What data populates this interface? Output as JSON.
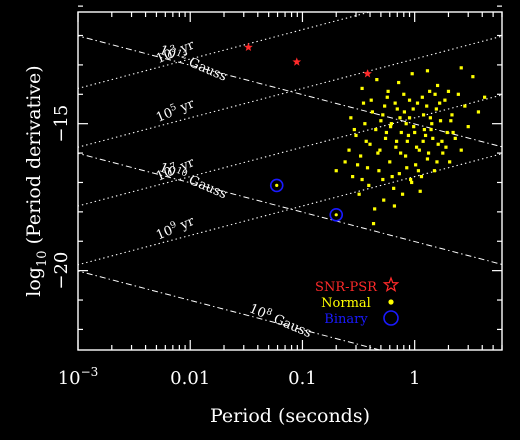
{
  "chart_data": {
    "type": "scatter",
    "title": "",
    "xlabel": "Period (seconds)",
    "ylabel_prefix": "log",
    "ylabel_sub": "10",
    "ylabel_rest": " (Period derivative)",
    "x_scale": "log",
    "xlim": [
      0.001,
      6.0
    ],
    "ylim": [
      -22.7,
      -11.2
    ],
    "x_ticks": [
      {
        "value": 0.001,
        "label_base": "10",
        "label_exp": "−3"
      },
      {
        "value": 0.01,
        "label": "0.01"
      },
      {
        "value": 0.1,
        "label": "0.1"
      },
      {
        "value": 1,
        "label": "1"
      }
    ],
    "y_ticks": [
      {
        "value": -15,
        "label": "−15"
      },
      {
        "value": -20,
        "label": "−20"
      }
    ],
    "field_lines": [
      {
        "label_base": "10",
        "label_exp": "12",
        "label_rest": " Gauss",
        "gauss_exp": 12
      },
      {
        "label_base": "10",
        "label_exp": "10",
        "label_rest": " Gauss",
        "gauss_exp": 10
      },
      {
        "label_base": "10",
        "label_exp": "8",
        "label_rest": " Gauss",
        "gauss_exp": 8
      }
    ],
    "age_lines": [
      {
        "label_base": "10",
        "label_exp": "3",
        "label_rest": " yr",
        "age_exp": 3
      },
      {
        "label_base": "10",
        "label_exp": "5",
        "label_rest": " yr",
        "age_exp": 5
      },
      {
        "label_base": "10",
        "label_exp": "7",
        "label_rest": " yr",
        "age_exp": 7
      },
      {
        "label_base": "10",
        "label_exp": "9",
        "label_rest": " yr",
        "age_exp": 9
      }
    ],
    "legend": {
      "placement": "bottom-right",
      "entries": [
        {
          "name": "SNR-PSR",
          "color": "#ff2a2a",
          "marker": "star"
        },
        {
          "name": "Normal",
          "color": "#ffff00",
          "marker": "dot"
        },
        {
          "name": "Binary",
          "color": "#1a1aff",
          "marker": "circle"
        }
      ]
    },
    "series": [
      {
        "name": "SNR-PSR",
        "color": "#ff2a2a",
        "points": [
          [
            0.033,
            -12.4
          ],
          [
            0.089,
            -12.9
          ],
          [
            0.38,
            -13.3
          ]
        ]
      },
      {
        "name": "Binary",
        "color": "#1a1aff",
        "points": [
          [
            0.059,
            -17.1
          ],
          [
            0.2,
            -18.1
          ]
        ]
      },
      {
        "name": "Normal",
        "color": "#ffff00",
        "points": [
          [
            0.2,
            -16.6
          ],
          [
            0.24,
            -16.3
          ],
          [
            0.26,
            -15.9
          ],
          [
            0.28,
            -16.8
          ],
          [
            0.3,
            -15.4
          ],
          [
            0.32,
            -17.4
          ],
          [
            0.33,
            -16.1
          ],
          [
            0.35,
            -14.3
          ],
          [
            0.36,
            -15.0
          ],
          [
            0.38,
            -16.5
          ],
          [
            0.4,
            -15.7
          ],
          [
            0.42,
            -14.6
          ],
          [
            0.44,
            -17.9
          ],
          [
            0.45,
            -15.2
          ],
          [
            0.47,
            -16.0
          ],
          [
            0.5,
            -14.9
          ],
          [
            0.52,
            -16.9
          ],
          [
            0.55,
            -15.5
          ],
          [
            0.57,
            -14.1
          ],
          [
            0.6,
            -16.3
          ],
          [
            0.62,
            -15.0
          ],
          [
            0.65,
            -17.2
          ],
          [
            0.68,
            -15.8
          ],
          [
            0.7,
            -14.5
          ],
          [
            0.73,
            -16.7
          ],
          [
            0.76,
            -15.3
          ],
          [
            0.8,
            -14.0
          ],
          [
            0.83,
            -16.1
          ],
          [
            0.86,
            -15.6
          ],
          [
            0.9,
            -14.8
          ],
          [
            0.94,
            -17.0
          ],
          [
            0.98,
            -15.1
          ],
          [
            1.02,
            -16.4
          ],
          [
            1.06,
            -14.3
          ],
          [
            1.1,
            -15.9
          ],
          [
            1.15,
            -16.8
          ],
          [
            1.2,
            -14.7
          ],
          [
            1.25,
            -15.4
          ],
          [
            1.3,
            -16.2
          ],
          [
            1.36,
            -13.9
          ],
          [
            1.42,
            -15.0
          ],
          [
            1.5,
            -16.6
          ],
          [
            1.56,
            -14.5
          ],
          [
            1.62,
            -15.7
          ],
          [
            1.7,
            -14.9
          ],
          [
            1.78,
            -16.0
          ],
          [
            1.86,
            -14.2
          ],
          [
            1.95,
            -15.3
          ],
          [
            2.05,
            -16.3
          ],
          [
            2.15,
            -14.7
          ],
          [
            2.3,
            -15.5
          ],
          [
            2.45,
            -14.0
          ],
          [
            2.6,
            -15.9
          ],
          [
            2.8,
            -14.4
          ],
          [
            3.0,
            -15.1
          ],
          [
            3.3,
            -13.4
          ],
          [
            3.7,
            -14.6
          ],
          [
            4.2,
            -14.1
          ],
          [
            0.34,
            -13.8
          ],
          [
            0.46,
            -13.5
          ],
          [
            0.58,
            -13.9
          ],
          [
            0.72,
            -13.6
          ],
          [
            0.95,
            -13.3
          ],
          [
            1.3,
            -13.2
          ],
          [
            1.6,
            -13.7
          ],
          [
            2.0,
            -13.9
          ],
          [
            2.6,
            -13.1
          ],
          [
            0.27,
            -14.8
          ],
          [
            0.31,
            -16.4
          ],
          [
            0.39,
            -17.1
          ],
          [
            0.43,
            -18.4
          ],
          [
            0.53,
            -17.6
          ],
          [
            0.66,
            -17.8
          ],
          [
            0.78,
            -17.4
          ],
          [
            0.92,
            -16.9
          ],
          [
            1.12,
            -17.3
          ],
          [
            0.37,
            -15.6
          ],
          [
            0.49,
            -15.9
          ],
          [
            0.61,
            -15.1
          ],
          [
            0.75,
            -16.0
          ],
          [
            0.88,
            -15.4
          ],
          [
            1.04,
            -15.8
          ],
          [
            1.22,
            -15.2
          ],
          [
            1.45,
            -15.5
          ],
          [
            1.75,
            -15.6
          ],
          [
            2.2,
            -15.3
          ],
          [
            0.41,
            -14.2
          ],
          [
            0.54,
            -14.4
          ],
          [
            0.67,
            -14.3
          ],
          [
            0.81,
            -14.6
          ],
          [
            0.97,
            -14.5
          ],
          [
            1.17,
            -14.1
          ],
          [
            1.38,
            -14.8
          ],
          [
            1.67,
            -14.3
          ],
          [
            2.1,
            -14.9
          ],
          [
            0.29,
            -15.2
          ],
          [
            0.34,
            -16.9
          ],
          [
            0.48,
            -16.6
          ],
          [
            0.63,
            -16.8
          ],
          [
            0.85,
            -16.5
          ],
          [
            1.08,
            -16.6
          ],
          [
            1.33,
            -16.0
          ],
          [
            1.58,
            -16.3
          ],
          [
            1.9,
            -15.8
          ],
          [
            0.56,
            -15.3
          ],
          [
            0.69,
            -15.6
          ],
          [
            0.84,
            -15.0
          ],
          [
            1.0,
            -15.3
          ],
          [
            1.19,
            -15.6
          ],
          [
            1.4,
            -15.2
          ],
          [
            0.52,
            -14.7
          ],
          [
            0.74,
            -14.8
          ],
          [
            0.9,
            -14.2
          ],
          [
            1.28,
            -14.4
          ],
          [
            1.52,
            -14.0
          ]
        ]
      }
    ]
  }
}
